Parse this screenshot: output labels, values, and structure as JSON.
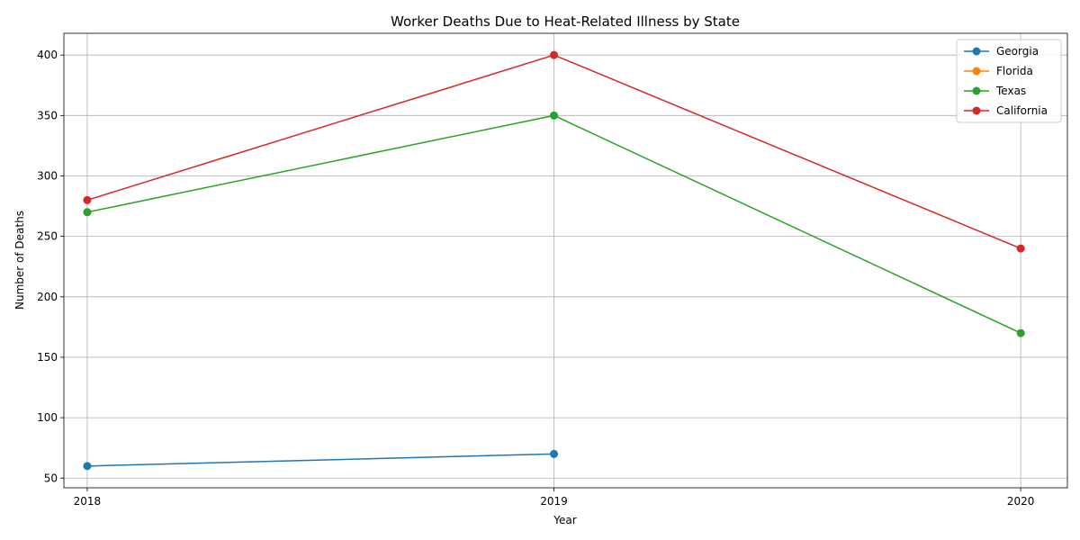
{
  "chart_data": {
    "type": "line",
    "title": "Worker Deaths Due to Heat-Related Illness by State",
    "xlabel": "Year",
    "ylabel": "Number of Deaths",
    "x": [
      2018,
      2019,
      2020
    ],
    "xticks": [
      "2018",
      "2019",
      "2020"
    ],
    "xlim": [
      2017.95,
      2020.1
    ],
    "ylim": [
      42,
      418
    ],
    "yticks": [
      50,
      100,
      150,
      200,
      250,
      300,
      350,
      400
    ],
    "grid": true,
    "legend_position": "top-right",
    "series": [
      {
        "name": "Georgia",
        "color": "#1f77b4",
        "values": [
          60,
          70,
          null
        ]
      },
      {
        "name": "Florida",
        "color": "#ff7f0e",
        "values": [
          null,
          null,
          null
        ]
      },
      {
        "name": "Texas",
        "color": "#2ca02c",
        "values": [
          270,
          350,
          170
        ]
      },
      {
        "name": "California",
        "color": "#d62728",
        "values": [
          280,
          400,
          240
        ]
      }
    ]
  }
}
